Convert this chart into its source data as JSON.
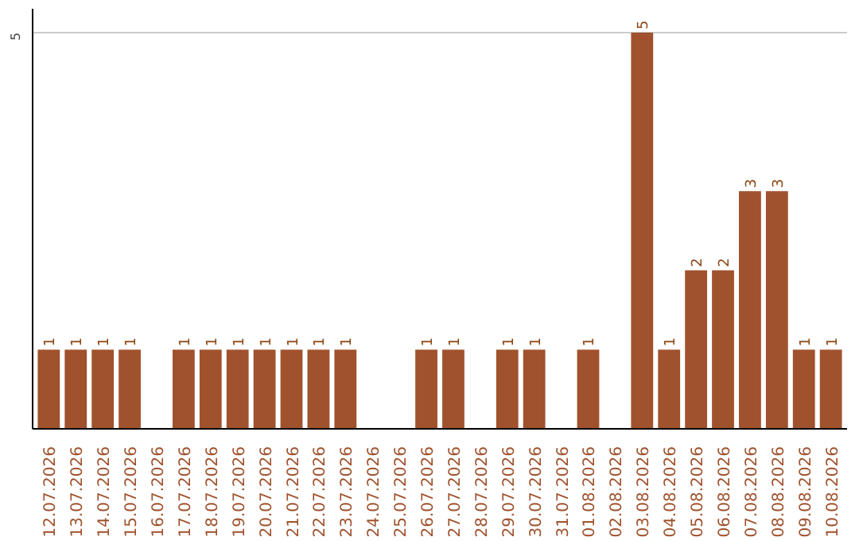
{
  "chart_data": {
    "type": "bar",
    "categories": [
      "12.07.2026",
      "13.07.2026",
      "14.07.2026",
      "15.07.2026",
      "16.07.2026",
      "17.07.2026",
      "18.07.2026",
      "19.07.2026",
      "20.07.2026",
      "21.07.2026",
      "22.07.2026",
      "23.07.2026",
      "24.07.2026",
      "25.07.2026",
      "26.07.2026",
      "27.07.2026",
      "28.07.2026",
      "29.07.2026",
      "30.07.2026",
      "31.07.2026",
      "01.08.2026",
      "02.08.2026",
      "03.08.2026",
      "04.08.2026",
      "05.08.2026",
      "06.08.2026",
      "07.08.2026",
      "08.08.2026",
      "09.08.2026",
      "10.08.2026"
    ],
    "values": [
      1,
      1,
      1,
      1,
      null,
      1,
      1,
      1,
      1,
      1,
      1,
      1,
      null,
      null,
      1,
      1,
      null,
      1,
      1,
      null,
      1,
      null,
      5,
      1,
      2,
      2,
      3,
      3,
      1,
      1
    ],
    "color": "#a0522d",
    "ylim": [
      0,
      5.3
    ],
    "yticks": [
      5
    ],
    "grid": "y",
    "data_labels": true
  }
}
